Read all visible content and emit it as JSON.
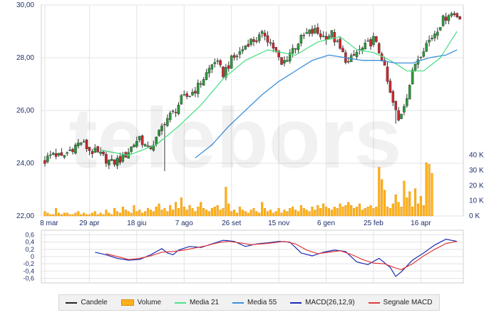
{
  "watermark": "telebors",
  "legend": {
    "items": [
      {
        "label": "Candele",
        "color": "#222222",
        "kind": "line"
      },
      {
        "label": "Volume",
        "color": "#ffb21a",
        "kind": "bar"
      },
      {
        "label": "Media 21",
        "color": "#4ee085",
        "kind": "line"
      },
      {
        "label": "Media 55",
        "color": "#3b8fdb",
        "kind": "line"
      },
      {
        "label": "MACD(26,12,9)",
        "color": "#1c2bb5",
        "kind": "line"
      },
      {
        "label": "Segnale MACD",
        "color": "#e03a3a",
        "kind": "line"
      }
    ]
  },
  "colors": {
    "candle_up": "#2a9a3a",
    "candle_down": "#c8282d",
    "volume": "#ffb21a",
    "volume_edge": "#e08a00",
    "grid": "#e3e3e3",
    "axis_text": "#1f2d6b"
  },
  "chart_data": [
    {
      "type": "candlestick",
      "panel": "price",
      "x_tick_labels": [
        "8 mar",
        "29 apr",
        "18 giu",
        "7 ago",
        "26 set",
        "15 nov",
        "6 gen",
        "25 feb",
        "16 apr"
      ],
      "y_tick_labels": [
        "30,00",
        "28,00",
        "26,00",
        "24,00",
        "22,00"
      ],
      "ylim": [
        22,
        30
      ],
      "grid": true,
      "close_anchors": [
        [
          0,
          24.1
        ],
        [
          3,
          24.4
        ],
        [
          6,
          24.2
        ],
        [
          10,
          24.6
        ],
        [
          13,
          24.8
        ],
        [
          16,
          24.5
        ],
        [
          20,
          24.3
        ],
        [
          24,
          24.0
        ],
        [
          28,
          24.2
        ],
        [
          31,
          24.6
        ],
        [
          34,
          25.0
        ],
        [
          37,
          24.5
        ],
        [
          40,
          24.9
        ],
        [
          43,
          25.6
        ],
        [
          46,
          25.9
        ],
        [
          49,
          26.4
        ],
        [
          52,
          26.6
        ],
        [
          55,
          26.9
        ],
        [
          58,
          27.4
        ],
        [
          61,
          27.9
        ],
        [
          64,
          27.4
        ],
        [
          67,
          27.9
        ],
        [
          70,
          28.2
        ],
        [
          73,
          28.6
        ],
        [
          76,
          28.7
        ],
        [
          79,
          28.9
        ],
        [
          82,
          28.4
        ],
        [
          85,
          27.7
        ],
        [
          88,
          28.2
        ],
        [
          91,
          28.6
        ],
        [
          94,
          28.9
        ],
        [
          97,
          29.0
        ],
        [
          100,
          28.8
        ],
        [
          103,
          28.9
        ],
        [
          106,
          28.3
        ],
        [
          109,
          27.8
        ],
        [
          112,
          28.2
        ],
        [
          115,
          28.4
        ],
        [
          118,
          28.7
        ],
        [
          121,
          28.0
        ],
        [
          124,
          26.6
        ],
        [
          127,
          25.6
        ],
        [
          130,
          26.6
        ],
        [
          133,
          27.8
        ],
        [
          136,
          28.4
        ],
        [
          139,
          28.8
        ],
        [
          142,
          29.3
        ],
        [
          145,
          29.7
        ],
        [
          148,
          29.6
        ]
      ],
      "low_spikes": [
        [
          43,
          23.7
        ],
        [
          126,
          25.5
        ]
      ],
      "moving_averages": [
        {
          "name": "Media 21",
          "color": "#4ee085",
          "anchors": [
            [
              20,
              24.5
            ],
            [
              30,
              24.3
            ],
            [
              40,
              24.7
            ],
            [
              48,
              25.4
            ],
            [
              56,
              26.2
            ],
            [
              64,
              27.2
            ],
            [
              72,
              27.9
            ],
            [
              80,
              28.3
            ],
            [
              90,
              28.1
            ],
            [
              98,
              28.6
            ],
            [
              106,
              28.8
            ],
            [
              112,
              28.3
            ],
            [
              118,
              28.2
            ],
            [
              124,
              27.9
            ],
            [
              130,
              27.5
            ],
            [
              136,
              27.5
            ],
            [
              142,
              28.0
            ],
            [
              148,
              29.0
            ]
          ]
        },
        {
          "name": "Media 55",
          "color": "#3b8fdb",
          "anchors": [
            [
              54,
              24.2
            ],
            [
              60,
              24.7
            ],
            [
              66,
              25.4
            ],
            [
              72,
              26.0
            ],
            [
              78,
              26.6
            ],
            [
              84,
              27.1
            ],
            [
              90,
              27.5
            ],
            [
              96,
              27.9
            ],
            [
              102,
              28.1
            ],
            [
              108,
              28.0
            ],
            [
              114,
              27.9
            ],
            [
              120,
              27.9
            ],
            [
              126,
              27.8
            ],
            [
              132,
              27.8
            ],
            [
              138,
              28.0
            ],
            [
              144,
              28.1
            ],
            [
              148,
              28.3
            ]
          ]
        }
      ]
    },
    {
      "type": "bar",
      "panel": "volume",
      "y_tick_labels": [
        "40 K",
        "30 K",
        "20 K",
        "10 K",
        "0 K"
      ],
      "ylim": [
        0,
        45
      ],
      "values_k": [
        3,
        2,
        1,
        1,
        5,
        2,
        1,
        2,
        2,
        1,
        1,
        2,
        3,
        1,
        2,
        1,
        1,
        2,
        3,
        1,
        2,
        1,
        4,
        2,
        1,
        5,
        3,
        2,
        6,
        4,
        3,
        2,
        7,
        3,
        4,
        2,
        3,
        5,
        4,
        3,
        6,
        8,
        4,
        5,
        3,
        7,
        4,
        9,
        5,
        12,
        6,
        4,
        7,
        5,
        3,
        6,
        9,
        5,
        4,
        3,
        5,
        6,
        7,
        4,
        5,
        19,
        8,
        3,
        4,
        2,
        6,
        4,
        3,
        2,
        4,
        5,
        3,
        2,
        9,
        5,
        3,
        4,
        2,
        3,
        5,
        2,
        4,
        3,
        5,
        6,
        4,
        3,
        7,
        5,
        4,
        3,
        6,
        4,
        7,
        5,
        8,
        6,
        5,
        4,
        6,
        5,
        8,
        6,
        7,
        9,
        7,
        5,
        6,
        8,
        4,
        5,
        6,
        7,
        5,
        6,
        32,
        24,
        17,
        6,
        5,
        8,
        14,
        9,
        6,
        23,
        12,
        16,
        6,
        18,
        8,
        13,
        7,
        35,
        34,
        28
      ]
    },
    {
      "type": "line",
      "panel": "macd",
      "y_tick_labels": [
        "0,6",
        "0,4",
        "0,2",
        "0",
        "-0,2",
        "-0,4",
        "-0,6"
      ],
      "ylim": [
        -0.65,
        0.65
      ],
      "series": [
        {
          "name": "MACD(26,12,9)",
          "color": "#1c2bb5",
          "anchors": [
            [
              18,
              0.12
            ],
            [
              22,
              0.05
            ],
            [
              26,
              -0.05
            ],
            [
              30,
              -0.1
            ],
            [
              34,
              -0.08
            ],
            [
              38,
              0.05
            ],
            [
              42,
              0.22
            ],
            [
              44,
              0.1
            ],
            [
              46,
              0.05
            ],
            [
              48,
              0.18
            ],
            [
              52,
              0.28
            ],
            [
              56,
              0.25
            ],
            [
              60,
              0.35
            ],
            [
              64,
              0.45
            ],
            [
              68,
              0.42
            ],
            [
              72,
              0.28
            ],
            [
              76,
              0.35
            ],
            [
              80,
              0.38
            ],
            [
              84,
              0.42
            ],
            [
              88,
              0.4
            ],
            [
              92,
              0.1
            ],
            [
              96,
              0.02
            ],
            [
              100,
              0.12
            ],
            [
              104,
              0.18
            ],
            [
              108,
              0.14
            ],
            [
              112,
              -0.15
            ],
            [
              116,
              -0.22
            ],
            [
              120,
              -0.05
            ],
            [
              124,
              -0.3
            ],
            [
              126,
              -0.55
            ],
            [
              128,
              -0.42
            ],
            [
              132,
              -0.1
            ],
            [
              136,
              0.1
            ],
            [
              140,
              0.32
            ],
            [
              144,
              0.48
            ],
            [
              148,
              0.42
            ]
          ]
        },
        {
          "name": "Segnale MACD",
          "color": "#e03a3a",
          "anchors": [
            [
              22,
              0.08
            ],
            [
              26,
              0.0
            ],
            [
              30,
              -0.08
            ],
            [
              34,
              -0.05
            ],
            [
              38,
              0.02
            ],
            [
              42,
              0.12
            ],
            [
              46,
              0.14
            ],
            [
              50,
              0.18
            ],
            [
              54,
              0.24
            ],
            [
              58,
              0.3
            ],
            [
              62,
              0.38
            ],
            [
              66,
              0.42
            ],
            [
              70,
              0.38
            ],
            [
              74,
              0.33
            ],
            [
              78,
              0.35
            ],
            [
              82,
              0.38
            ],
            [
              86,
              0.42
            ],
            [
              90,
              0.35
            ],
            [
              94,
              0.18
            ],
            [
              98,
              0.08
            ],
            [
              102,
              0.12
            ],
            [
              106,
              0.16
            ],
            [
              110,
              0.06
            ],
            [
              114,
              -0.08
            ],
            [
              118,
              -0.18
            ],
            [
              122,
              -0.2
            ],
            [
              126,
              -0.32
            ],
            [
              128,
              -0.36
            ],
            [
              132,
              -0.2
            ],
            [
              136,
              0.02
            ],
            [
              140,
              0.2
            ],
            [
              144,
              0.36
            ],
            [
              148,
              0.42
            ]
          ]
        }
      ]
    }
  ]
}
